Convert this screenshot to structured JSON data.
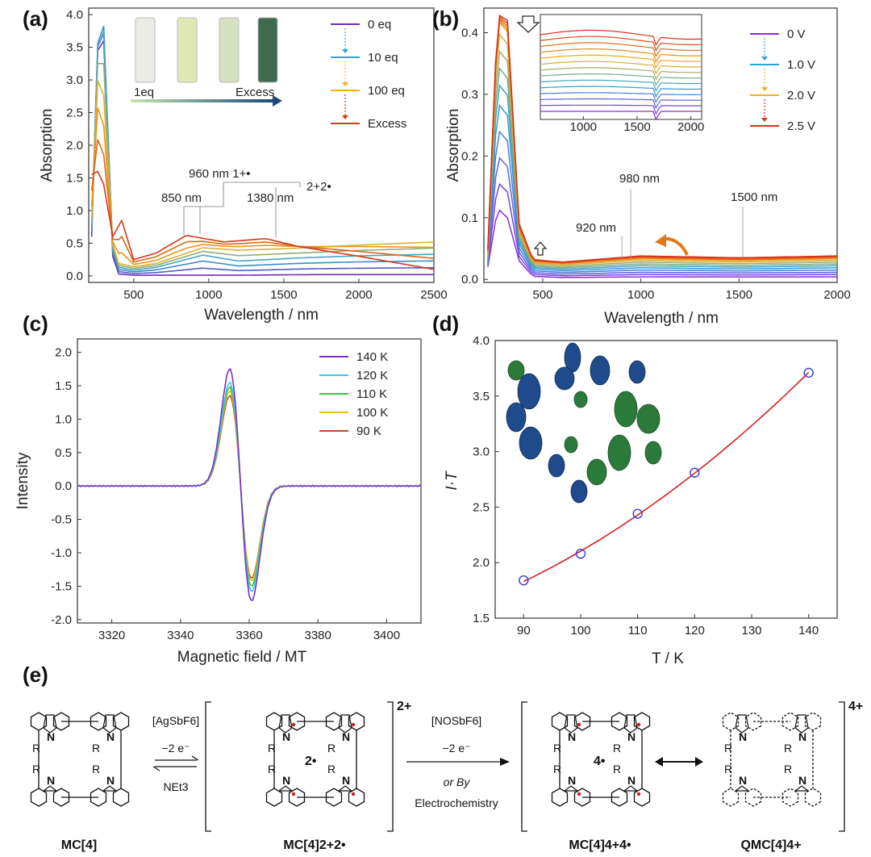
{
  "chart_data": [
    {
      "panel": "(a)",
      "type": "line",
      "xlabel": "Wavelength / nm",
      "ylabel": "Absorption",
      "xlim": [
        200,
        2500
      ],
      "ylim": [
        -0.1,
        4.1
      ],
      "xticks": [
        "500",
        "1000",
        "1500",
        "2000",
        "2500"
      ],
      "yticks": [
        "0.0",
        "0.5",
        "1.0",
        "1.5",
        "2.0",
        "2.5",
        "3.0",
        "3.5",
        "4.0"
      ],
      "legend": [
        "0 eq",
        "10 eq",
        "100 eq",
        "Excess"
      ],
      "legend_position": "top-right",
      "inset_labels": [
        "1eq",
        "Excess"
      ],
      "annotations": [
        "960 nm 1+•",
        "850 nm",
        "1380 nm",
        "2+2•"
      ],
      "series": [
        {
          "name": "0 eq",
          "color": "#6a2fb5",
          "x": [
            220,
            260,
            300,
            360,
            400,
            500,
            800,
            1200,
            1700,
            2200,
            2500
          ],
          "y": [
            0.6,
            3.45,
            3.6,
            0.3,
            0.03,
            0.01,
            0.01,
            0.01,
            0.02,
            0.02,
            0.02
          ]
        },
        {
          "name": "10 eq",
          "color": "#2ba7d6",
          "x": [
            220,
            260,
            300,
            360,
            400,
            500,
            650,
            960,
            1200,
            1600,
            2000,
            2500
          ],
          "y": [
            0.7,
            3.6,
            3.9,
            0.4,
            0.12,
            0.08,
            0.12,
            0.3,
            0.2,
            0.25,
            0.28,
            0.3
          ]
        },
        {
          "name": "100 eq",
          "color": "#f2b21a",
          "x": [
            220,
            260,
            300,
            360,
            400,
            500,
            650,
            960,
            1200,
            1600,
            2000,
            2500
          ],
          "y": [
            0.9,
            2.9,
            2.6,
            0.5,
            0.2,
            0.15,
            0.2,
            0.45,
            0.42,
            0.45,
            0.5,
            0.55
          ]
        },
        {
          "name": "Excess",
          "color": "#d33a1a",
          "x": [
            220,
            260,
            300,
            360,
            420,
            500,
            650,
            850,
            1100,
            1380,
            1600,
            2000,
            2500
          ],
          "y": [
            1.55,
            1.6,
            1.4,
            0.6,
            0.85,
            0.25,
            0.35,
            0.62,
            0.52,
            0.57,
            0.45,
            0.3,
            0.1
          ]
        }
      ]
    },
    {
      "panel": "(b)",
      "type": "line",
      "xlabel": "Wavelength / nm",
      "ylabel": "Absorption",
      "xlim": [
        200,
        2000
      ],
      "ylim": [
        -0.005,
        0.44
      ],
      "xticks": [
        "500",
        "1000",
        "1500",
        "2000"
      ],
      "yticks": [
        "0.0",
        "0.1",
        "0.2",
        "0.3",
        "0.4"
      ],
      "legend": [
        "0 V",
        "1.0 V",
        "2.0 V",
        "2.5 V"
      ],
      "legend_position": "top-right",
      "annotations": [
        "980 nm",
        "920 nm",
        "1500 nm"
      ],
      "inset_xticks": [
        "1000",
        "1500",
        "2000"
      ],
      "series": [
        {
          "name": "0 V",
          "color": "#8a2be2",
          "x": [
            220,
            270,
            320,
            380,
            450,
            600,
            1000,
            1500,
            2000
          ],
          "y": [
            0.02,
            0.115,
            0.1,
            0.03,
            0.005,
            0.003,
            0.004,
            0.004,
            0.004
          ]
        },
        {
          "name": "1.0 V",
          "color": "#2aa3d8",
          "x": [
            220,
            270,
            320,
            380,
            450,
            600,
            1000,
            1500,
            2000
          ],
          "y": [
            0.03,
            0.3,
            0.28,
            0.06,
            0.018,
            0.015,
            0.02,
            0.018,
            0.02
          ]
        },
        {
          "name": "2.0 V",
          "color": "#f2b21a",
          "x": [
            220,
            270,
            320,
            380,
            450,
            600,
            1000,
            1500,
            2000
          ],
          "y": [
            0.04,
            0.42,
            0.4,
            0.08,
            0.028,
            0.025,
            0.033,
            0.03,
            0.033
          ]
        },
        {
          "name": "2.5 V",
          "color": "#d4301a",
          "x": [
            220,
            270,
            320,
            380,
            450,
            600,
            1000,
            1500,
            2000
          ],
          "y": [
            0.05,
            0.43,
            0.42,
            0.09,
            0.032,
            0.028,
            0.038,
            0.035,
            0.038
          ]
        }
      ]
    },
    {
      "panel": "(c)",
      "type": "line",
      "xlabel": "Magnetic field / MT",
      "ylabel": "Intensity",
      "xlim": [
        3310,
        3410
      ],
      "ylim": [
        -2.05,
        2.2
      ],
      "xticks": [
        "3320",
        "3340",
        "3360",
        "3380",
        "3400"
      ],
      "yticks": [
        "-2.0",
        "-1.5",
        "-1.0",
        "-0.5",
        "0.0",
        "0.5",
        "1.0",
        "1.5",
        "2.0"
      ],
      "legend": [
        "140 K",
        "120 K",
        "110 K",
        "100 K",
        "90 K"
      ],
      "legend_position": "top-right",
      "series": [
        {
          "name": "140 K",
          "color": "#7b2fc9",
          "peak": 1.75,
          "trough": -1.72
        },
        {
          "name": "120 K",
          "color": "#3fc8e6",
          "peak": 1.55,
          "trough": -1.58
        },
        {
          "name": "110 K",
          "color": "#37c837",
          "peak": 1.48,
          "trough": -1.5
        },
        {
          "name": "100 K",
          "color": "#e6c21a",
          "peak": 1.42,
          "trough": -1.42
        },
        {
          "name": "90 K",
          "color": "#c8462a",
          "peak": 1.35,
          "trough": -1.38
        }
      ]
    },
    {
      "panel": "(d)",
      "type": "scatter",
      "xlabel": "T / K",
      "ylabel": "I·T",
      "xlim": [
        85,
        145
      ],
      "ylim": [
        1.5,
        4.0
      ],
      "xticks": [
        "90",
        "100",
        "110",
        "120",
        "130",
        "140"
      ],
      "yticks": [
        "1.5",
        "2.0",
        "2.5",
        "3.0",
        "3.5",
        "4.0"
      ],
      "x": [
        90,
        100,
        110,
        120,
        140
      ],
      "y": [
        1.84,
        2.08,
        2.44,
        2.81,
        3.71
      ],
      "fit_color": "#d62020",
      "marker_color": "#3b3bd6"
    }
  ],
  "scheme": {
    "panel": "(e)",
    "compounds": [
      "MC[4]",
      "MC[4]2+2•",
      "MC[4]4+4•",
      "QMC[4]4+"
    ],
    "charges": [
      "2+",
      "4+"
    ],
    "center_labels": [
      "2•",
      "4•"
    ],
    "arrow1": {
      "reagent": "[AgSbF6]",
      "electrons": "−2 e⁻",
      "reverse": "NEt3"
    },
    "arrow2": {
      "reagent": "[NOSbF6]",
      "electrons": "−2 e⁻",
      "alt1": "or By",
      "alt2": "Electrochemistry"
    },
    "atom_labels": {
      "N": "N",
      "R": "R"
    }
  }
}
